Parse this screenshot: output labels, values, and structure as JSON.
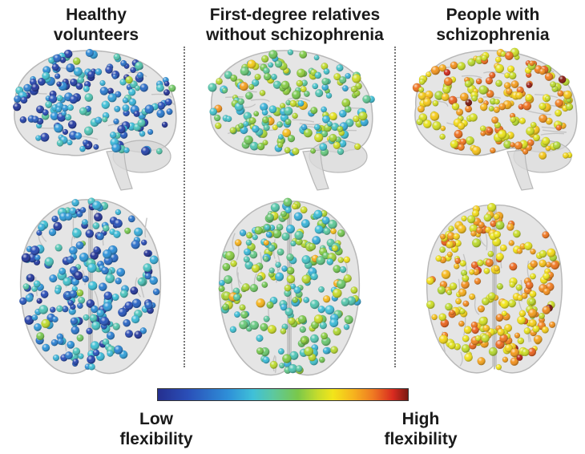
{
  "panels": [
    {
      "title_line1": "Healthy",
      "title_line2": "volunteers",
      "level": 0.18
    },
    {
      "title_line1": "First-degree relatives",
      "title_line2": "without schizophrenia",
      "level": 0.4
    },
    {
      "title_line1": "People with",
      "title_line2": "schizophrenia",
      "level": 0.68
    }
  ],
  "colorbar": {
    "low_line1": "Low",
    "low_line2": "flexibility",
    "high_line1": "High",
    "high_line2": "flexibility",
    "stops": [
      "#252f8f",
      "#2a4fb8",
      "#2e8fd8",
      "#3fc0d8",
      "#5cc8a0",
      "#7ac84a",
      "#c6dc2c",
      "#f2e51a",
      "#f6b51e",
      "#ef7a22",
      "#d92b20",
      "#7a1a12"
    ]
  }
}
